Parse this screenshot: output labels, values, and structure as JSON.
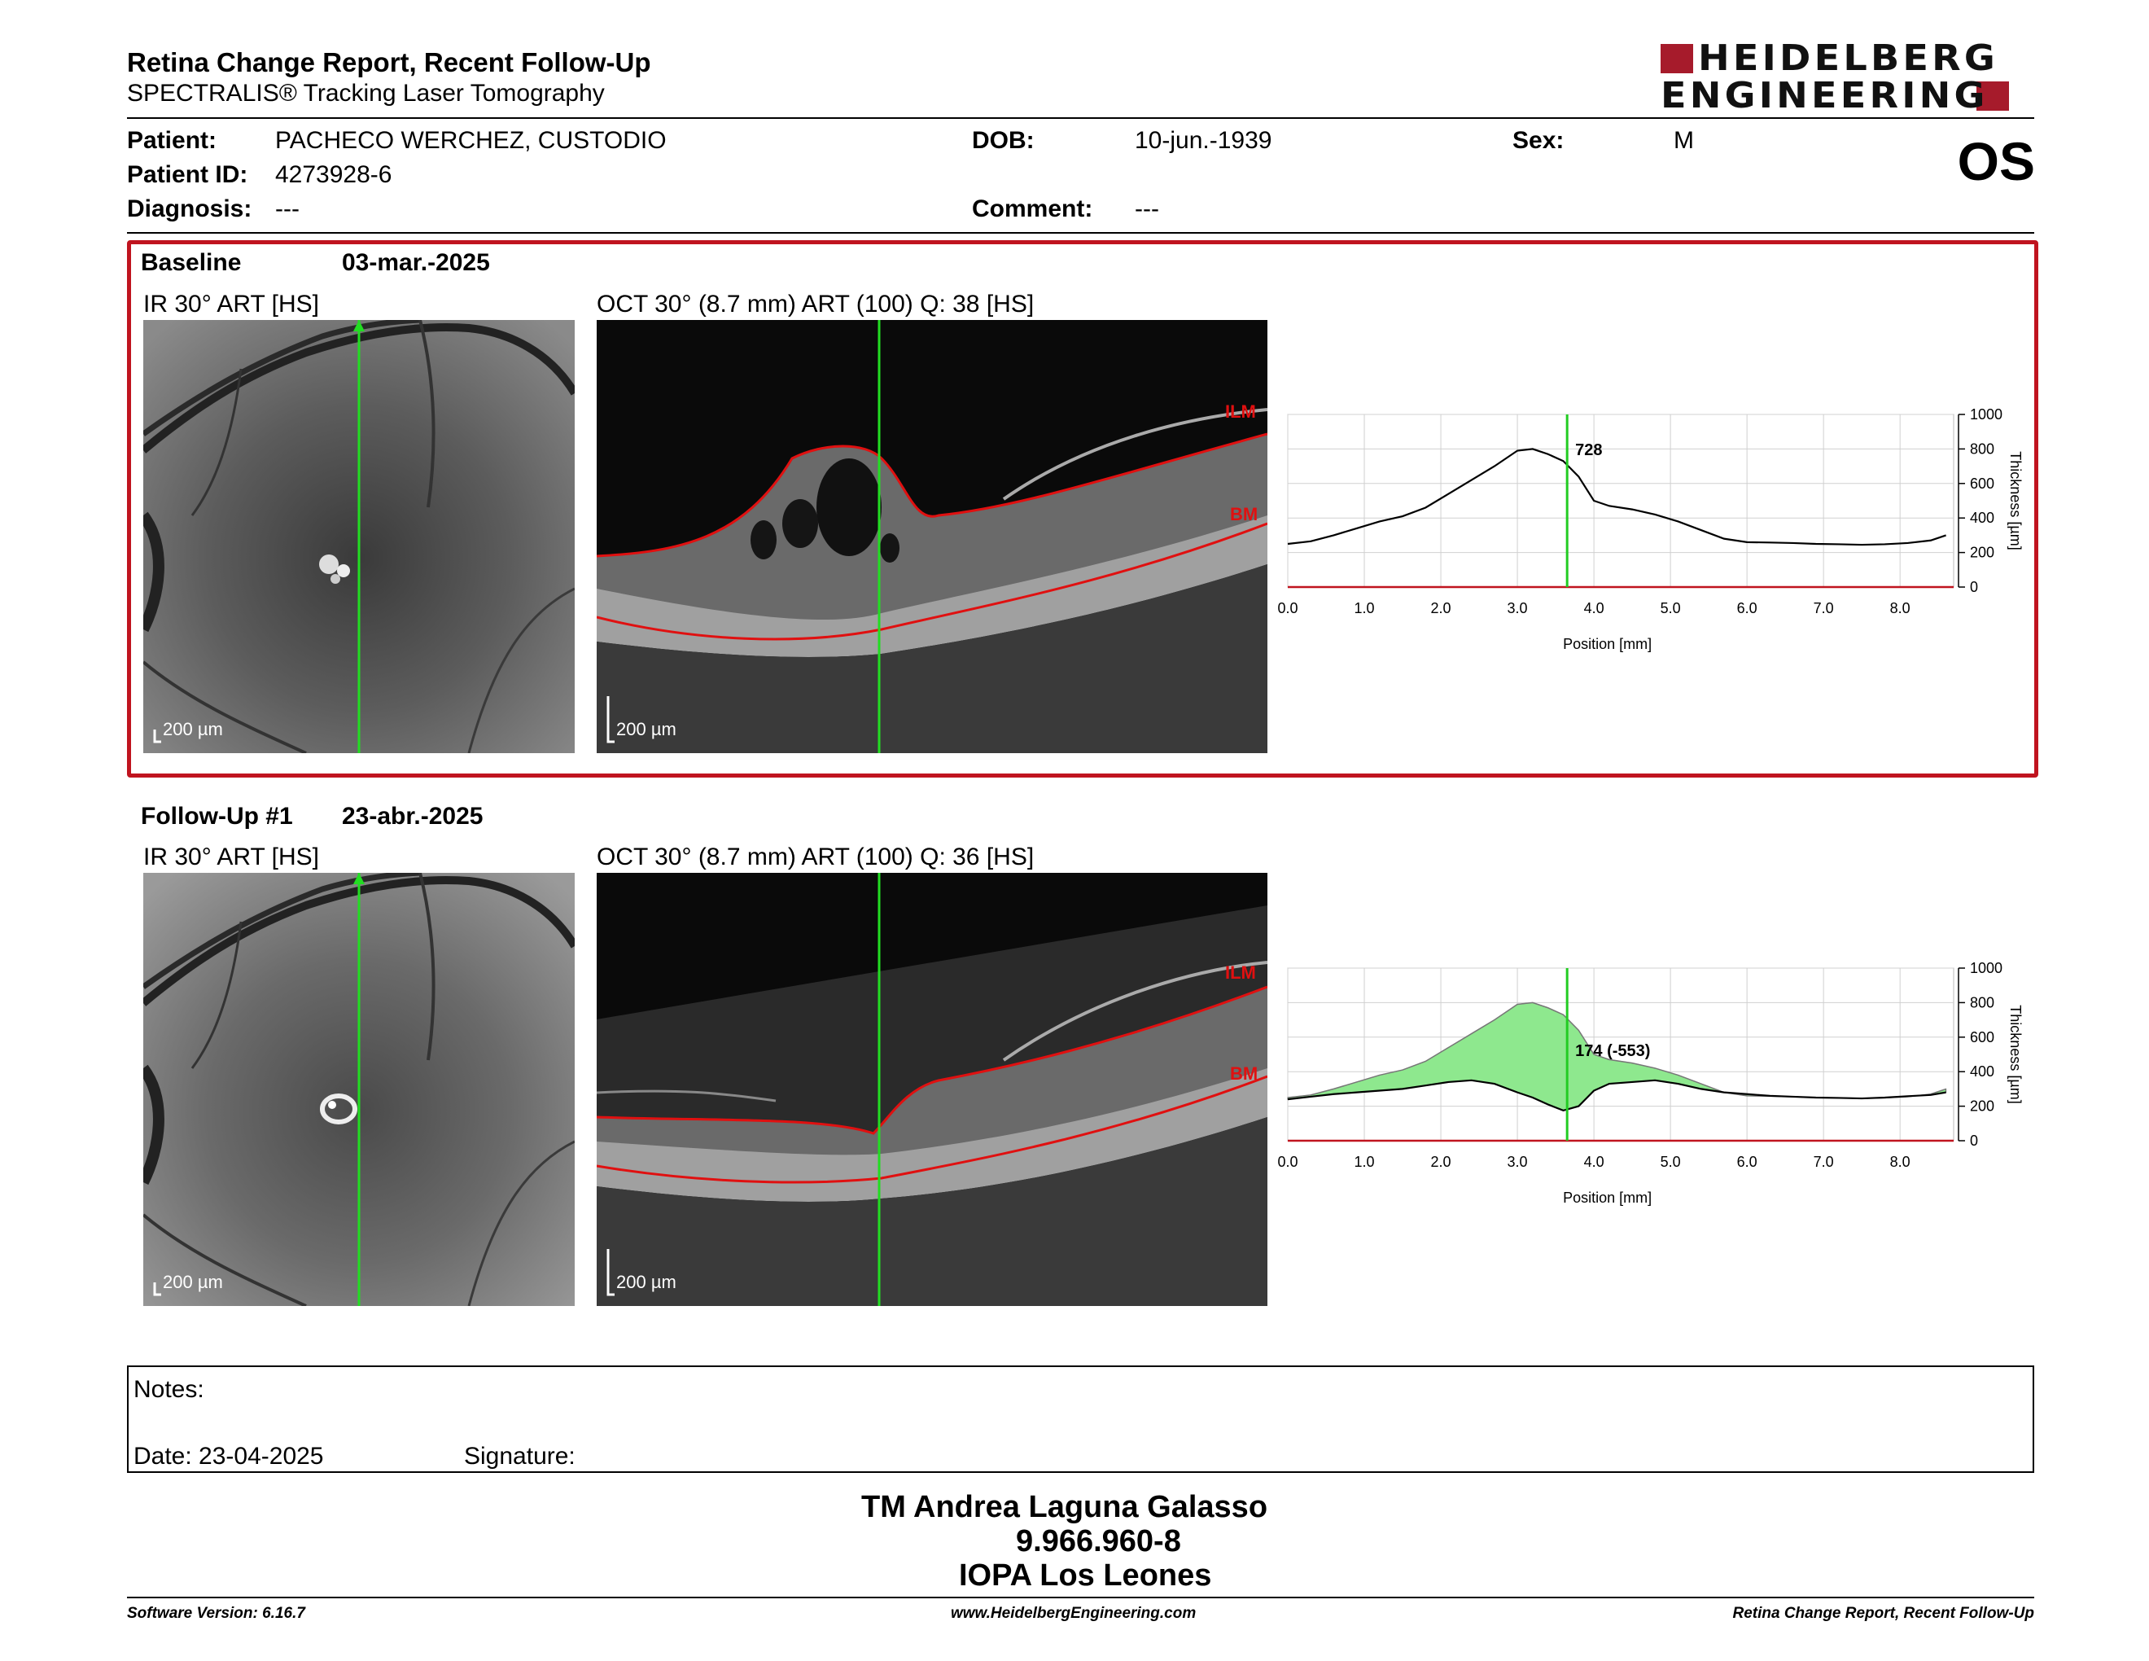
{
  "header": {
    "title": "Retina Change Report, Recent Follow-Up",
    "subtitle": "SPECTRALIS® Tracking Laser Tomography",
    "logo_line1": "HEIDELBERG",
    "logo_line2": "ENGINEERING",
    "eye": "OS"
  },
  "patient": {
    "patient_label": "Patient:",
    "patient_name": "PACHECO WERCHEZ, CUSTODIO",
    "dob_label": "DOB:",
    "dob": "10-jun.-1939",
    "sex_label": "Sex:",
    "sex": "M",
    "id_label": "Patient ID:",
    "id": "4273928-6",
    "diagnosis_label": "Diagnosis:",
    "diagnosis": "---",
    "comment_label": "Comment:",
    "comment": "---"
  },
  "baseline": {
    "title": "Baseline",
    "date": "03-mar.-2025",
    "ir_label": "IR 30° ART [HS]",
    "oct_label": "OCT 30° (8.7 mm) ART (100) Q: 38 [HS]",
    "ir_scale": "200 µm",
    "oct_scale": "200 µm",
    "ilm": "ILM",
    "bm": "BM"
  },
  "followup": {
    "title": "Follow-Up #1",
    "date": "23-abr.-2025",
    "ir_label": "IR 30° ART [HS]",
    "oct_label": "OCT 30° (8.7 mm) ART (100) Q: 36 [HS]",
    "ir_scale": "200 µm",
    "oct_scale": "200 µm",
    "ilm": "ILM",
    "bm": "BM"
  },
  "chart_data": [
    {
      "type": "line",
      "xlabel": "Position [mm]",
      "ylabel": "Thickness [µm]",
      "xlim": [
        0,
        8.7
      ],
      "ylim": [
        0,
        1000
      ],
      "x_ticks": [
        "0.0",
        "1.0",
        "2.0",
        "3.0",
        "4.0",
        "5.0",
        "6.0",
        "7.0",
        "8.0"
      ],
      "y_ticks": [
        "0",
        "200",
        "400",
        "600",
        "800",
        "1000"
      ],
      "grid": true,
      "cursor_x": 3.65,
      "cursor_label": "728",
      "series": [
        {
          "x": [
            0,
            0.3,
            0.6,
            0.9,
            1.2,
            1.5,
            1.8,
            2.1,
            2.4,
            2.7,
            3.0,
            3.2,
            3.4,
            3.6,
            3.8,
            4.0,
            4.2,
            4.5,
            4.8,
            5.1,
            5.4,
            5.7,
            6.0,
            6.3,
            6.6,
            6.9,
            7.2,
            7.5,
            7.8,
            8.1,
            8.4,
            8.6
          ],
          "values": [
            250,
            265,
            300,
            340,
            380,
            410,
            460,
            540,
            620,
            700,
            790,
            800,
            770,
            730,
            640,
            500,
            470,
            450,
            420,
            380,
            330,
            280,
            260,
            258,
            255,
            250,
            248,
            245,
            248,
            255,
            270,
            300
          ]
        }
      ]
    },
    {
      "type": "area",
      "xlabel": "Position [mm]",
      "ylabel": "Thickness [µm]",
      "xlim": [
        0,
        8.7
      ],
      "ylim": [
        0,
        1000
      ],
      "x_ticks": [
        "0.0",
        "1.0",
        "2.0",
        "3.0",
        "4.0",
        "5.0",
        "6.0",
        "7.0",
        "8.0"
      ],
      "y_ticks": [
        "0",
        "200",
        "400",
        "600",
        "800",
        "1000"
      ],
      "grid": true,
      "cursor_x": 3.65,
      "cursor_label": "174 (-553)",
      "series": [
        {
          "name": "baseline",
          "x": [
            0,
            0.3,
            0.6,
            0.9,
            1.2,
            1.5,
            1.8,
            2.1,
            2.4,
            2.7,
            3.0,
            3.2,
            3.4,
            3.6,
            3.8,
            4.0,
            4.2,
            4.5,
            4.8,
            5.1,
            5.4,
            5.7,
            6.0,
            6.3,
            6.6,
            6.9,
            7.2,
            7.5,
            7.8,
            8.1,
            8.4,
            8.6
          ],
          "values": [
            250,
            265,
            300,
            340,
            380,
            410,
            460,
            540,
            620,
            700,
            790,
            800,
            770,
            730,
            640,
            500,
            470,
            450,
            420,
            380,
            330,
            280,
            260,
            258,
            255,
            250,
            248,
            245,
            248,
            255,
            270,
            300
          ]
        },
        {
          "name": "follow-up",
          "x": [
            0,
            0.3,
            0.6,
            0.9,
            1.2,
            1.5,
            1.8,
            2.1,
            2.4,
            2.7,
            3.0,
            3.2,
            3.4,
            3.6,
            3.8,
            4.0,
            4.2,
            4.5,
            4.8,
            5.1,
            5.4,
            5.7,
            6.0,
            6.3,
            6.6,
            6.9,
            7.2,
            7.5,
            7.8,
            8.1,
            8.4,
            8.6
          ],
          "values": [
            240,
            255,
            270,
            280,
            290,
            300,
            320,
            340,
            350,
            330,
            280,
            250,
            210,
            175,
            200,
            290,
            330,
            340,
            350,
            330,
            300,
            280,
            270,
            260,
            255,
            250,
            248,
            245,
            250,
            258,
            265,
            280
          ]
        }
      ]
    }
  ],
  "notes": {
    "notes_label": "Notes:",
    "date_label": "Date: 23-04-2025",
    "signature_label": "Signature:"
  },
  "signer": {
    "name": "TM Andrea Laguna Galasso",
    "id": "9.966.960-8",
    "institution": "IOPA Los Leones"
  },
  "footer": {
    "software": "Software Version: 6.16.7",
    "website": "www.HeidelbergEngineering.com",
    "report": "Retina Change Report, Recent Follow-Up"
  }
}
